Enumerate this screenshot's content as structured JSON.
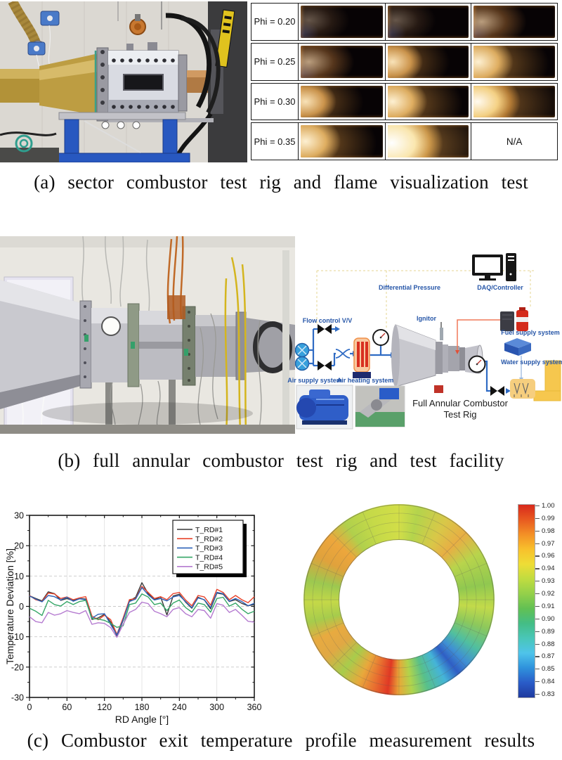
{
  "captions": {
    "a": "(a) sector combustor test rig and flame visualization test",
    "b": "(b) full annular combustor test rig and test facility",
    "c": "(c) Combustor exit temperature profile measurement results"
  },
  "flame_table": {
    "na_label": "N/A",
    "rows": [
      {
        "label": "Phi = 0.20",
        "cells": [
          "f1",
          "f1",
          "f2"
        ]
      },
      {
        "label": "Phi = 0.25",
        "cells": [
          "f2",
          "f3",
          "f4"
        ]
      },
      {
        "label": "Phi = 0.30",
        "cells": [
          "f3",
          "f4",
          "f5"
        ]
      },
      {
        "label": "Phi = 0.35",
        "cells": [
          "f4",
          "f6",
          "na"
        ]
      }
    ]
  },
  "schematic": {
    "daq_label": "DAQ/Controller",
    "diff_pressure_label": "Differential Pressure",
    "flow_control_label": "Flow control V/V",
    "air_supply_label": "Air supply system",
    "air_heating_label": "Air heating system",
    "ignitor_label": "Ignitor",
    "fuel_label": "Fuel supply system",
    "water_label": "Water supply system",
    "rig_label_line1": "Full Annular Combustor",
    "rig_label_line2": "Test Rig",
    "accent_blue": "#2656a8",
    "pipe_blue": "#2f6bc4"
  },
  "chart_data": [
    {
      "type": "line",
      "title": "",
      "xlabel": "RD Angle [°]",
      "ylabel": "Temperature Deviation [%]",
      "xlim": [
        0,
        360
      ],
      "ylim": [
        -30,
        30
      ],
      "xticks": [
        0,
        60,
        120,
        180,
        240,
        300,
        360
      ],
      "yticks": [
        -30,
        -20,
        -10,
        0,
        10,
        20,
        30
      ],
      "grid": true,
      "legend_position": "top-right",
      "x": [
        0,
        10,
        20,
        30,
        40,
        50,
        60,
        70,
        80,
        90,
        100,
        110,
        120,
        130,
        140,
        150,
        160,
        170,
        180,
        190,
        200,
        210,
        220,
        230,
        240,
        250,
        260,
        270,
        280,
        290,
        300,
        310,
        320,
        330,
        340,
        350,
        360
      ],
      "series": [
        {
          "name": "T_RD#1",
          "color": "#3a3a3a",
          "values": [
            3.5,
            2.6,
            1.8,
            4.8,
            4.2,
            2.0,
            2.6,
            1.9,
            2.6,
            2.4,
            -4.3,
            -3.8,
            -2.6,
            -5.2,
            -9.8,
            -4.6,
            1.8,
            3.0,
            7.8,
            4.2,
            2.2,
            3.1,
            -2.8,
            3.4,
            4.0,
            1.4,
            -0.6,
            3.0,
            2.1,
            -0.8,
            4.4,
            4.0,
            1.6,
            2.2,
            1.0,
            0.2,
            0.6
          ]
        },
        {
          "name": "T_RD#2",
          "color": "#e8442c",
          "values": [
            3.6,
            2.2,
            1.6,
            4.4,
            4.1,
            2.6,
            3.1,
            2.2,
            2.8,
            3.2,
            -3.2,
            -4.4,
            -2.9,
            -4.4,
            -9.2,
            -3.8,
            2.2,
            2.6,
            6.6,
            4.6,
            2.6,
            3.2,
            2.2,
            4.2,
            4.6,
            2.1,
            0.2,
            3.6,
            3.1,
            0.4,
            5.6,
            4.6,
            2.2,
            3.6,
            2.2,
            1.2,
            3.2
          ]
        },
        {
          "name": "T_RD#3",
          "color": "#2e62b8",
          "values": [
            3.4,
            2.4,
            1.5,
            3.6,
            3.2,
            2.1,
            3.0,
            1.7,
            2.5,
            2.2,
            -3.9,
            -2.6,
            -2.4,
            -6.0,
            -9.4,
            -4.4,
            1.6,
            2.4,
            6.2,
            3.8,
            2.1,
            2.6,
            1.8,
            3.1,
            3.6,
            1.6,
            -0.4,
            2.8,
            2.2,
            -0.4,
            4.6,
            4.2,
            1.7,
            2.6,
            1.6,
            0.2,
            1.0
          ]
        },
        {
          "name": "T_RD#4",
          "color": "#34a666",
          "values": [
            -0.6,
            -1.6,
            -3.0,
            2.0,
            0.6,
            0.1,
            1.6,
            0.6,
            1.6,
            2.0,
            -4.0,
            -4.2,
            -4.6,
            -5.6,
            -6.9,
            -6.4,
            0.6,
            1.1,
            4.1,
            3.1,
            0.6,
            1.1,
            -1.4,
            1.1,
            2.1,
            -0.4,
            -1.9,
            1.1,
            0.6,
            -1.9,
            2.6,
            3.0,
            0.1,
            1.1,
            -0.9,
            -2.4,
            -1.6
          ]
        },
        {
          "name": "T_RD#5",
          "color": "#b57bd0",
          "values": [
            -3.4,
            -5.0,
            -5.4,
            -2.0,
            -2.9,
            -2.4,
            -1.4,
            -2.0,
            -2.4,
            -1.4,
            -5.9,
            -5.4,
            -5.6,
            -7.0,
            -10.2,
            -5.9,
            -2.0,
            -1.0,
            1.4,
            0.9,
            -1.6,
            -2.4,
            -3.4,
            -1.0,
            -0.4,
            -2.4,
            -3.4,
            -1.0,
            -1.4,
            -3.9,
            0.9,
            0.4,
            -2.0,
            -1.0,
            -2.9,
            -4.9,
            -5.2
          ]
        }
      ]
    },
    {
      "type": "heatmap",
      "subtype": "annular-ring-contour",
      "title": "",
      "value_range": [
        0.83,
        1.0
      ],
      "colorbar_ticks": [
        "1.00",
        "0.99",
        "0.98",
        "0.97",
        "0.96",
        "0.94",
        "0.93",
        "0.92",
        "0.91",
        "0.90",
        "0.89",
        "0.88",
        "0.87",
        "0.85",
        "0.84",
        "0.83"
      ],
      "colorbar_colors_top_to_bottom": [
        "#d8291c",
        "#e85a20",
        "#f39026",
        "#f8c02c",
        "#eedd36",
        "#c0dc40",
        "#94d04a",
        "#62c053",
        "#44bd85",
        "#49c6b8",
        "#4fc4ea",
        "#2f92dc",
        "#2a5cc8",
        "#1f3a9e"
      ],
      "angular_values_clockwise_from_top": [
        {
          "deg": 0,
          "value": 0.955
        },
        {
          "deg": 45,
          "value": 0.965
        },
        {
          "deg": 90,
          "value": 0.945
        },
        {
          "deg": 120,
          "value": 0.9
        },
        {
          "deg": 140,
          "value": 0.85
        },
        {
          "deg": 160,
          "value": 0.89
        },
        {
          "deg": 188,
          "value": 0.995
        },
        {
          "deg": 215,
          "value": 0.93
        },
        {
          "deg": 238,
          "value": 0.965
        },
        {
          "deg": 270,
          "value": 0.945
        },
        {
          "deg": 312,
          "value": 0.97
        },
        {
          "deg": 340,
          "value": 0.935
        }
      ],
      "ring_gradient_stops": [
        {
          "deg": 0,
          "color": "#d2de48"
        },
        {
          "deg": 12,
          "color": "#b4d44c"
        },
        {
          "deg": 30,
          "color": "#d8c848"
        },
        {
          "deg": 45,
          "color": "#e8ae44"
        },
        {
          "deg": 60,
          "color": "#b8d44c"
        },
        {
          "deg": 80,
          "color": "#90c850"
        },
        {
          "deg": 95,
          "color": "#c2da4a"
        },
        {
          "deg": 108,
          "color": "#8cc85c"
        },
        {
          "deg": 122,
          "color": "#50bfa0"
        },
        {
          "deg": 133,
          "color": "#3f8fd4"
        },
        {
          "deg": 141,
          "color": "#2f5ec4"
        },
        {
          "deg": 150,
          "color": "#45b4d8"
        },
        {
          "deg": 162,
          "color": "#58c08a"
        },
        {
          "deg": 172,
          "color": "#b0d44c"
        },
        {
          "deg": 180,
          "color": "#e8a838"
        },
        {
          "deg": 187,
          "color": "#e03824"
        },
        {
          "deg": 196,
          "color": "#e87030"
        },
        {
          "deg": 206,
          "color": "#e8a83c"
        },
        {
          "deg": 218,
          "color": "#a8cc4c"
        },
        {
          "deg": 232,
          "color": "#e0a844"
        },
        {
          "deg": 244,
          "color": "#e8aa40"
        },
        {
          "deg": 256,
          "color": "#a6cc4c"
        },
        {
          "deg": 268,
          "color": "#c4d848"
        },
        {
          "deg": 282,
          "color": "#9cc850"
        },
        {
          "deg": 298,
          "color": "#e0a23c"
        },
        {
          "deg": 312,
          "color": "#eda63c"
        },
        {
          "deg": 325,
          "color": "#b0d04c"
        },
        {
          "deg": 342,
          "color": "#c6da48"
        },
        {
          "deg": 360,
          "color": "#d2de48"
        }
      ]
    }
  ]
}
